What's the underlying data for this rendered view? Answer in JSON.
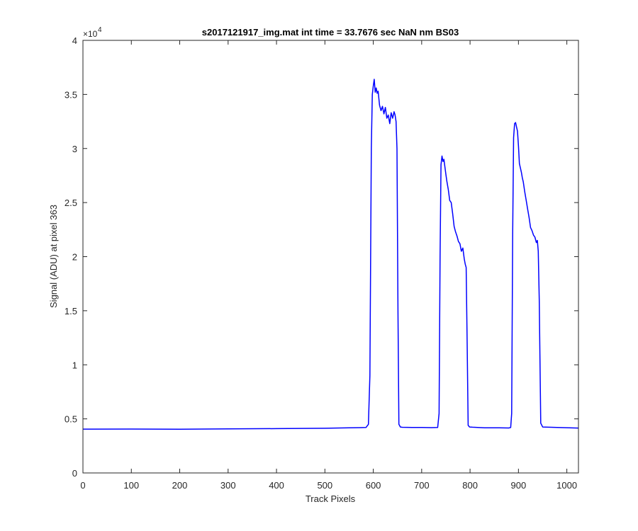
{
  "chart_data": {
    "type": "line",
    "title": "s2017121917_img.mat int time = 33.7676 sec  NaN nm BS03",
    "xlabel": "Track Pixels",
    "ylabel": "Signal (ADU) at pixel 363",
    "xlim": [
      0,
      1024
    ],
    "ylim": [
      0,
      40000
    ],
    "y_exponent_label": "×10",
    "y_exponent_power": "4",
    "x_ticks": [
      0,
      100,
      200,
      300,
      400,
      500,
      600,
      700,
      800,
      900,
      1000
    ],
    "x_tick_labels": [
      "0",
      "100",
      "200",
      "300",
      "400",
      "500",
      "600",
      "700",
      "800",
      "900",
      "1000"
    ],
    "y_ticks": [
      0,
      5000,
      10000,
      15000,
      20000,
      25000,
      30000,
      35000,
      40000
    ],
    "y_tick_labels": [
      "0",
      "0.5",
      "1",
      "1.5",
      "2",
      "2.5",
      "3",
      "3.5",
      "4"
    ],
    "grid": false,
    "line_color": "#0000ff",
    "axes_color": "#262626",
    "series": [
      {
        "x": [
          0,
          100,
          200,
          300,
          400,
          500,
          550,
          585,
          590,
          593,
          596,
          598,
          600,
          602,
          604,
          606,
          608,
          610,
          613,
          616,
          619,
          622,
          625,
          628,
          631,
          634,
          637,
          640,
          643,
          645,
          647,
          649,
          651,
          653,
          656,
          660,
          680,
          700,
          720,
          733,
          736,
          738,
          740,
          742,
          744,
          746,
          748,
          750,
          752,
          755,
          758,
          761,
          764,
          767,
          770,
          773,
          776,
          779,
          782,
          785,
          788,
          790,
          792,
          794,
          796,
          799,
          805,
          830,
          860,
          880,
          884,
          886,
          888,
          890,
          892,
          894,
          896,
          898,
          900,
          902,
          904,
          906,
          908,
          910,
          913,
          916,
          919,
          922,
          925,
          928,
          931,
          934,
          937,
          939,
          941,
          943,
          946,
          950,
          980,
          1024
        ],
        "y": [
          4050,
          4060,
          4040,
          4080,
          4100,
          4130,
          4170,
          4200,
          4500,
          9000,
          30000,
          35000,
          35800,
          36400,
          35200,
          35600,
          35100,
          35300,
          34000,
          33500,
          33900,
          33200,
          33800,
          32800,
          33100,
          32300,
          33300,
          32800,
          33400,
          33100,
          32500,
          30000,
          15000,
          4500,
          4250,
          4220,
          4210,
          4200,
          4190,
          4200,
          5500,
          20000,
          28500,
          29300,
          28800,
          29000,
          28300,
          27600,
          27000,
          26200,
          25200,
          25000,
          24000,
          22800,
          22300,
          21900,
          21400,
          21200,
          20500,
          20800,
          19800,
          19300,
          19000,
          12000,
          4400,
          4250,
          4230,
          4180,
          4170,
          4160,
          4200,
          5500,
          22000,
          31000,
          32300,
          32400,
          32000,
          31600,
          30200,
          28600,
          28200,
          27800,
          27300,
          26900,
          26000,
          25200,
          24400,
          23600,
          22700,
          22400,
          22000,
          21800,
          21300,
          21500,
          20500,
          16000,
          4600,
          4250,
          4200,
          4150
        ]
      }
    ]
  }
}
